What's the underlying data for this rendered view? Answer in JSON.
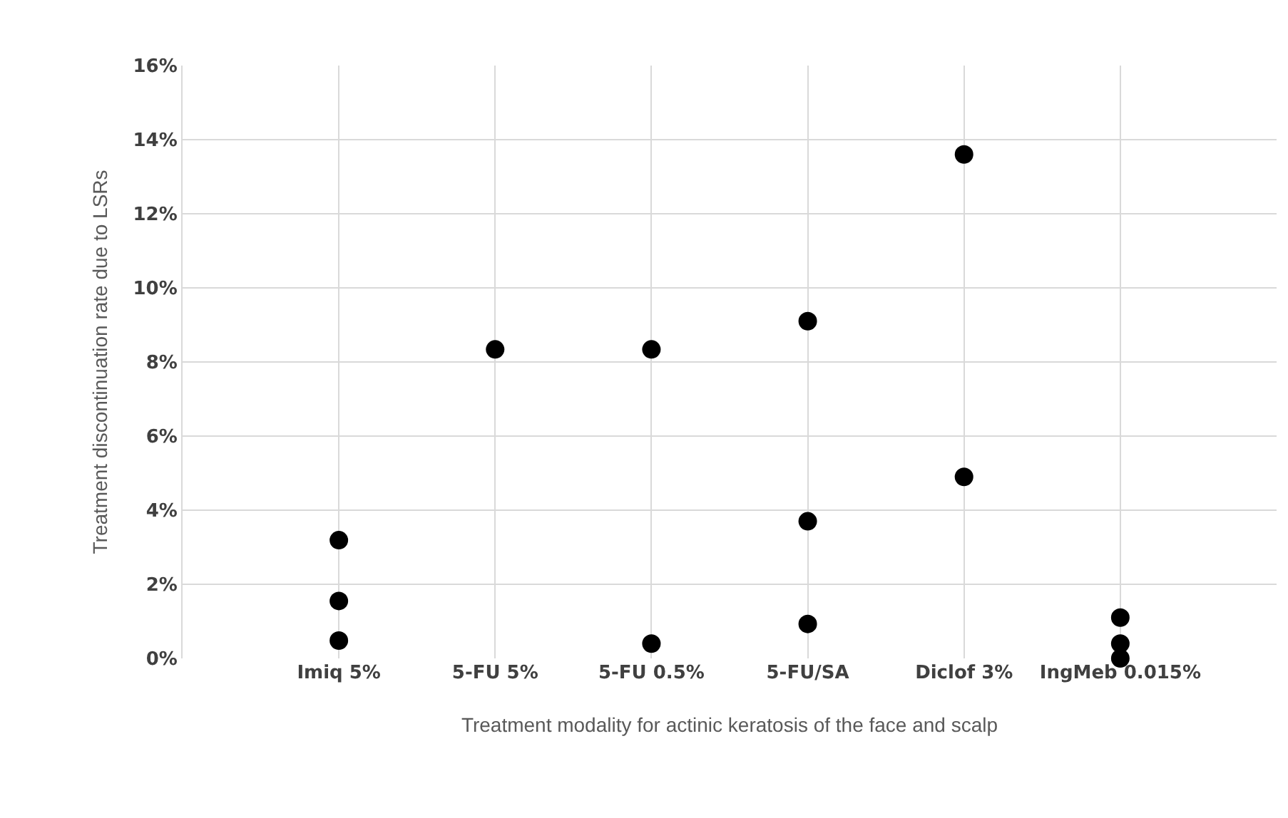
{
  "chart_data": {
    "type": "scatter",
    "xlabel": "Treatment modality for actinic keratosis of the face and scalp",
    "ylabel": "Treatment discontinuation rate due to LSRs",
    "categories": [
      "Imiq 5%",
      "5-FU 5%",
      "5-FU 0.5%",
      "5-FU/SA",
      "Diclof 3%",
      "IngMeb 0.015%"
    ],
    "series": [
      {
        "color": "#000000",
        "values": [
          3.19,
          8.34,
          8.34,
          9.1,
          13.6,
          1.1
        ]
      },
      {
        "color": "#000000",
        "values": [
          1.55,
          null,
          0.4,
          3.7,
          4.9,
          0.4
        ]
      },
      {
        "color": "#000000",
        "values": [
          0.48,
          null,
          null,
          0.93,
          null,
          0
        ]
      }
    ],
    "ylim": [
      0,
      16
    ],
    "yticks": [
      {
        "value": 0,
        "label": "0%"
      },
      {
        "value": 2,
        "label": "2%"
      },
      {
        "value": 4,
        "label": "4%"
      },
      {
        "value": 6,
        "label": "6%"
      },
      {
        "value": 8,
        "label": "8%"
      },
      {
        "value": 10,
        "label": "10%"
      },
      {
        "value": 12,
        "label": "12%"
      },
      {
        "value": 14,
        "label": "14%"
      },
      {
        "value": 16,
        "label": "16%"
      }
    ],
    "grid": true,
    "marker": "circle"
  }
}
